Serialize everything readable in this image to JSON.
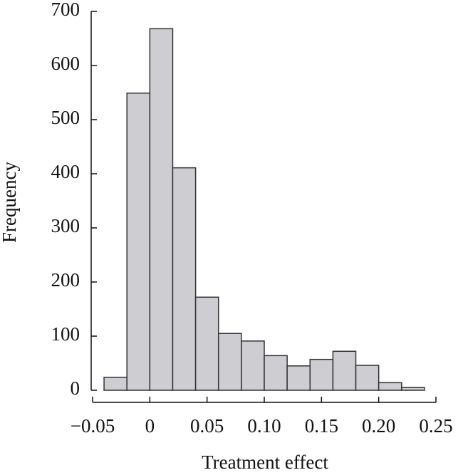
{
  "chart_data": {
    "type": "histogram",
    "x_label": "Treatment effect",
    "y_label": "Frequency",
    "bins": [
      -0.04,
      -0.02,
      0,
      0.02,
      0.04,
      0.06,
      0.08,
      0.1,
      0.12,
      0.14,
      0.16,
      0.18,
      0.2,
      0.22,
      0.24
    ],
    "values": [
      24,
      549,
      668,
      411,
      172,
      105,
      91,
      64,
      45,
      57,
      72,
      46,
      14,
      5
    ],
    "color": "#cdcdd2",
    "xlim": [
      -0.05,
      0.25
    ],
    "xticks": [
      {
        "value": -0.05,
        "label": "−0.05"
      },
      0,
      0.05,
      {
        "value": 0.1,
        "label": "0.10"
      },
      0.15,
      {
        "value": 0.2,
        "label": "0.20"
      },
      0.25
    ],
    "ylim": [
      0,
      700
    ],
    "yticks": [
      0,
      100,
      200,
      300,
      400,
      500,
      600,
      700
    ]
  }
}
